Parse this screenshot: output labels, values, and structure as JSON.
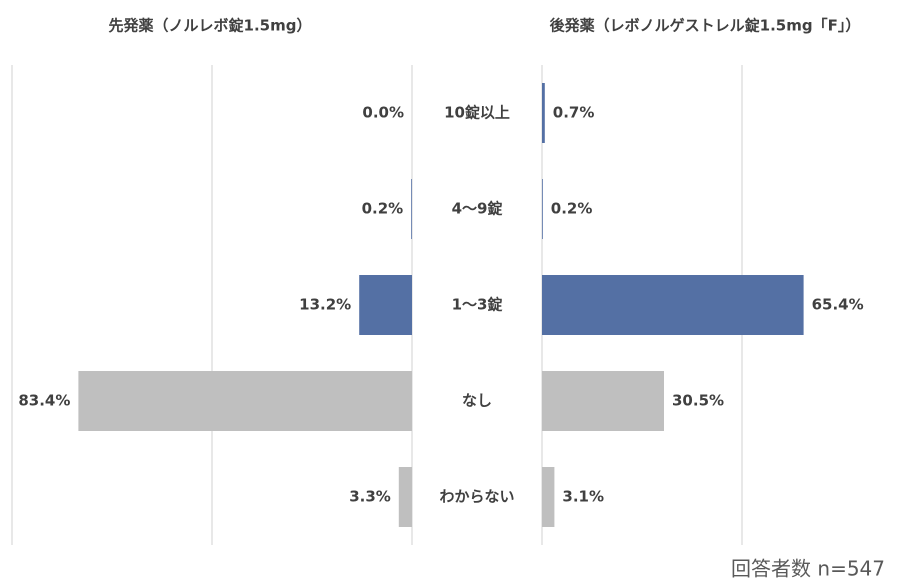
{
  "chart_data": {
    "type": "butterfly",
    "categories": [
      "10錠以上",
      "4〜9錠",
      "1〜3錠",
      "なし",
      "わからない"
    ],
    "colors": [
      "#5470a4",
      "#5470a4",
      "#5470a4",
      "#bfbfbf",
      "#bfbfbf"
    ],
    "series": [
      {
        "name": "先発薬（ノルレボ錠1.5mg）",
        "values": [
          0.0,
          0.2,
          13.2,
          83.4,
          3.3
        ],
        "value_labels": [
          "0.0%",
          "0.2%",
          "13.2%",
          "83.4%",
          "3.3%"
        ]
      },
      {
        "name": "後発薬（レボノルゲストレル錠1.5mg「F」）",
        "values": [
          0.7,
          0.2,
          65.4,
          30.5,
          3.1
        ],
        "value_labels": [
          "0.7%",
          "0.2%",
          "65.4%",
          "30.5%",
          "3.1%"
        ]
      }
    ],
    "xlim": [
      0,
      100
    ],
    "xticks": [
      0,
      50,
      100
    ],
    "grid": true,
    "note": "回答者数 n=547"
  }
}
